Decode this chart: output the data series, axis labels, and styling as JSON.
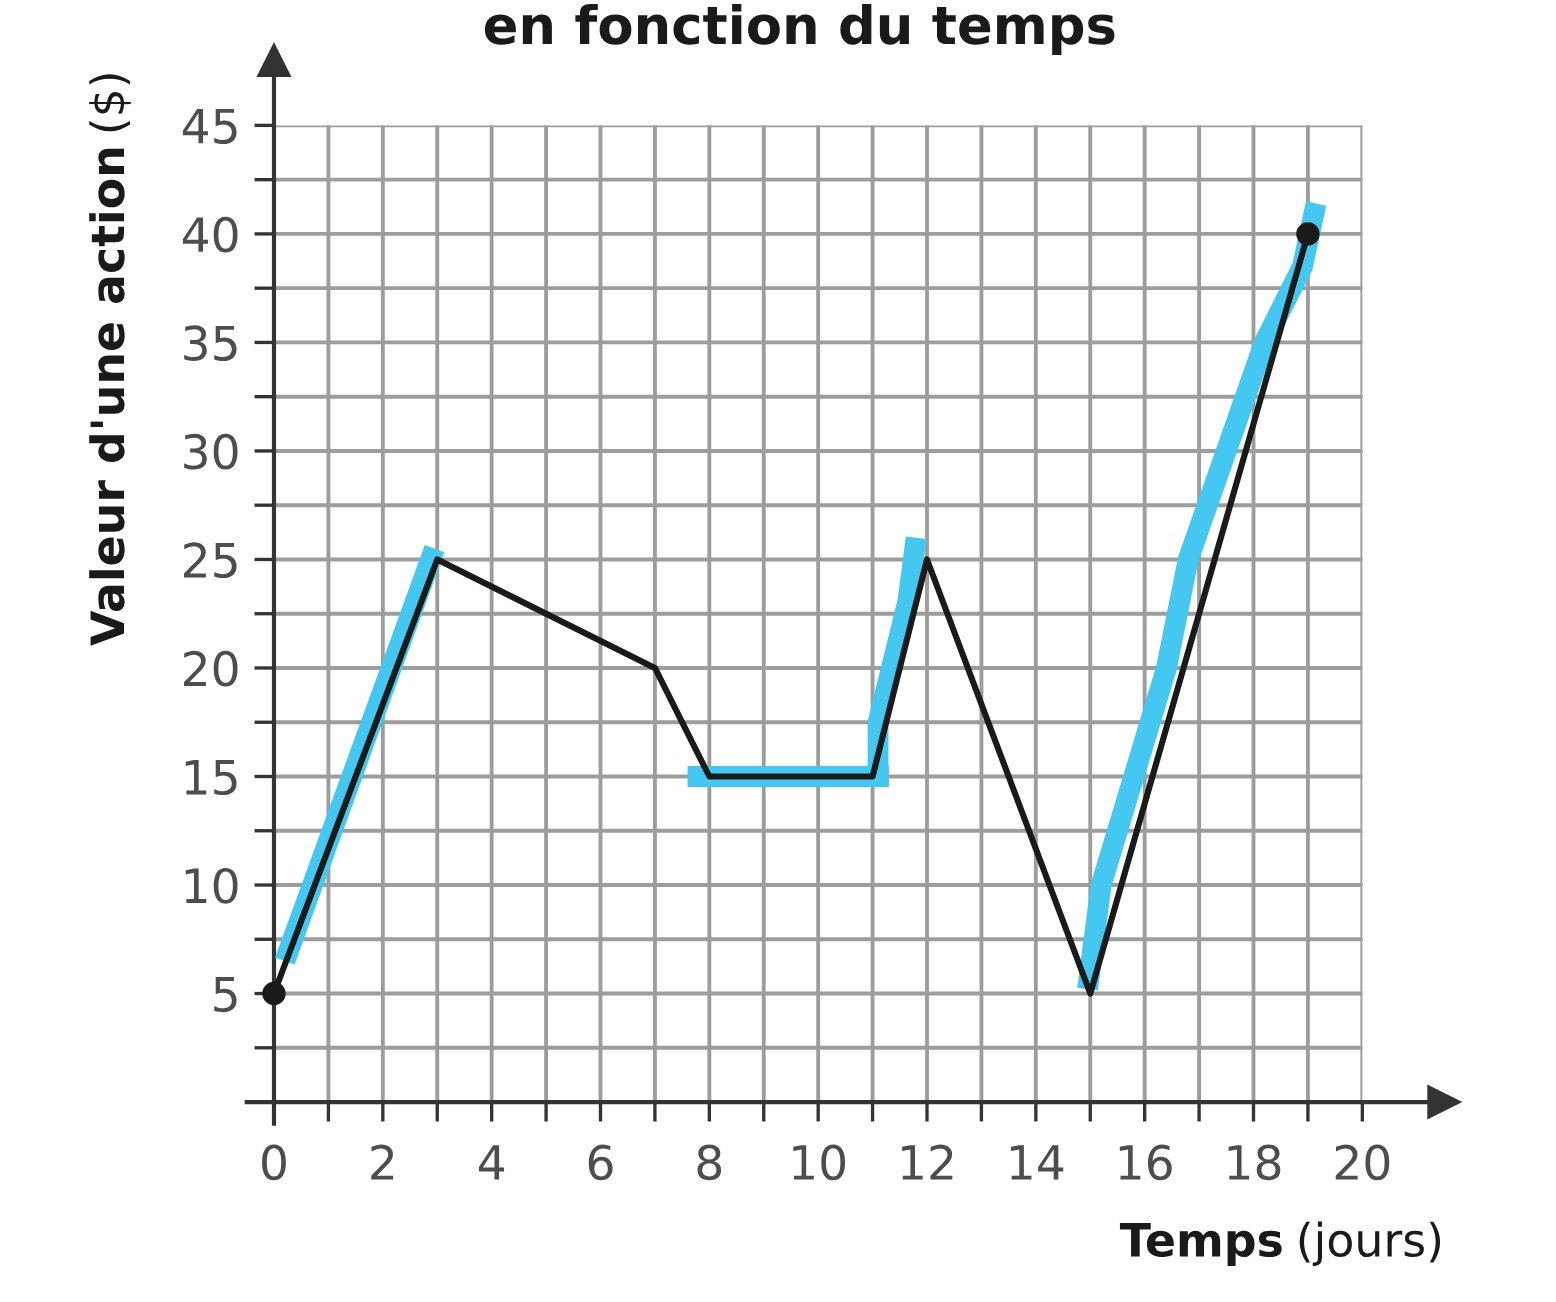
{
  "chart_data": {
    "type": "line",
    "title": "en fonction du temps",
    "xlabel": "Temps (jours)",
    "ylabel": "Valeur d'une action ($)",
    "xlim": [
      -0.5,
      21.5
    ],
    "ylim": [
      -1,
      48
    ],
    "xticks": [
      0,
      {
        "value": 1,
        "label": null
      },
      2,
      {
        "value": 3,
        "label": null
      },
      4,
      {
        "value": 5,
        "label": null
      },
      6,
      {
        "value": 7,
        "label": null
      },
      8,
      {
        "value": 9,
        "label": null
      },
      10,
      {
        "value": 11,
        "label": null
      },
      12,
      {
        "value": 13,
        "label": null
      },
      14,
      {
        "value": 15,
        "label": null
      },
      16,
      {
        "value": 17,
        "label": null
      },
      18,
      {
        "value": 19,
        "label": null
      },
      20
    ],
    "yticks": [
      {
        "value": 0,
        "label": null
      },
      {
        "value": 2.5,
        "label": null
      },
      5,
      {
        "value": 7.5,
        "label": null
      },
      10,
      {
        "value": 12.5,
        "label": null
      },
      15,
      {
        "value": 17.5,
        "label": null
      },
      20,
      {
        "value": 22.5,
        "label": null
      },
      25,
      {
        "value": 27.5,
        "label": null
      },
      30,
      {
        "value": 32.5,
        "label": null
      },
      35,
      {
        "value": 37.5,
        "label": null
      },
      40,
      {
        "value": 42.5,
        "label": null
      },
      45
    ],
    "grid": true,
    "series": [
      {
        "color": "#44c8f1",
        "x": [
          0.2,
          2.95
        ],
        "values": [
          6.5,
          25.5
        ]
      },
      {
        "color": "#44c8f1",
        "x": [
          7.6,
          11.3
        ],
        "values": [
          15,
          15
        ]
      },
      {
        "color": "#44c8f1",
        "x": [
          11.1,
          11.1,
          11.65,
          11.8
        ],
        "values": [
          15,
          17.5,
          23.1,
          26
        ]
      },
      {
        "color": "#44c8f1",
        "x": [
          14.95,
          15.2,
          15.8,
          16.4,
          16.8,
          17.5,
          18.2,
          18.9,
          19.15
        ],
        "values": [
          5.2,
          10,
          15,
          20,
          25,
          30,
          35,
          38.5,
          41.4
        ]
      },
      {
        "color": "#1a1a1a",
        "x": [
          0,
          3,
          7,
          8,
          11,
          12,
          15,
          19
        ],
        "values": [
          5,
          25,
          20,
          15,
          15,
          25,
          5,
          40
        ]
      },
      {
        "type": "scatter",
        "color": "#1a1a1a",
        "marker": "circle",
        "x": [
          0,
          19
        ],
        "values": [
          5,
          40
        ]
      }
    ]
  }
}
